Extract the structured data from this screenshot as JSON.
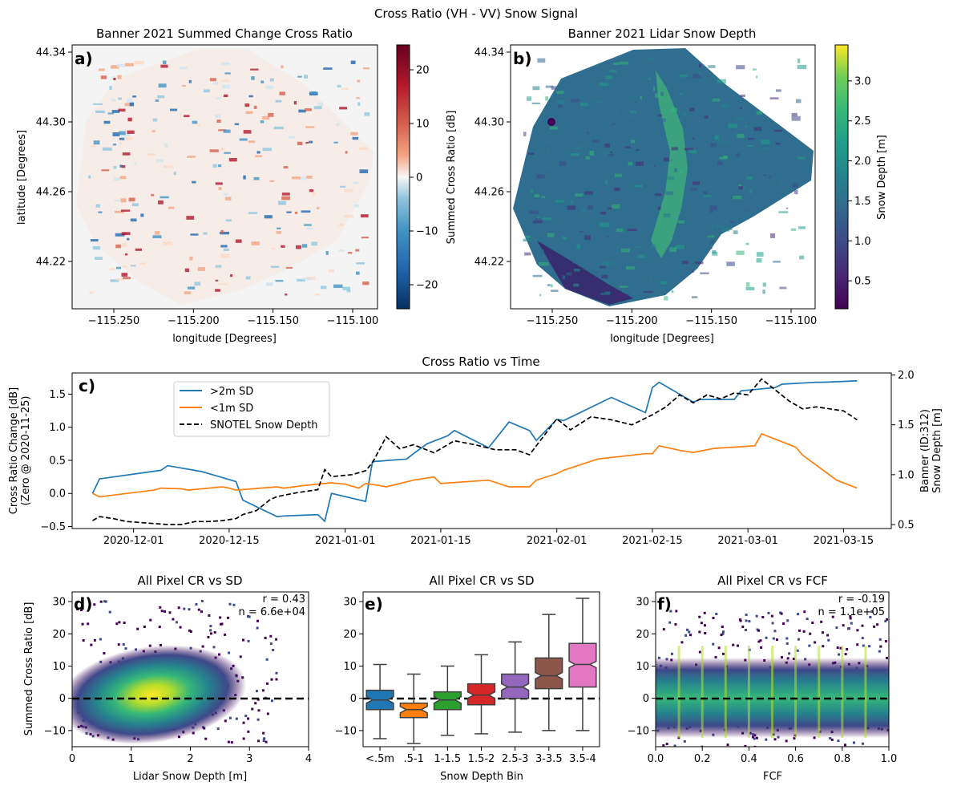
{
  "figure_title": "Cross Ratio (VH - VV) Snow Signal",
  "colors": {
    "series_gt2m": "#1f77b4",
    "series_lt1m": "#ff7f0e",
    "snotel": "#000000",
    "box_fills": [
      "#1f77b4",
      "#ff7f0e",
      "#2ca02c",
      "#d62728",
      "#9467bd",
      "#8c564b",
      "#e377c2"
    ]
  },
  "chart_data": [
    {
      "panel": "a)",
      "type": "heatmap",
      "title": "Banner 2021 Summed Change Cross Ratio",
      "xlabel": "longitude [Degrees]",
      "ylabel": "latitude [Degrees]",
      "xticks": [
        "−115.250",
        "−115.200",
        "−115.150",
        "−115.100"
      ],
      "yticks": [
        "44.34",
        "44.30",
        "44.26",
        "44.22"
      ],
      "colorbar": {
        "label": "Summed Cross Ratio [dB]",
        "ticks": [
          "20",
          "10",
          "0",
          "−10",
          "−20"
        ],
        "range": [
          -25,
          25
        ],
        "colormap": "RdBu_r"
      }
    },
    {
      "panel": "b)",
      "type": "heatmap",
      "title": "Banner 2021 Lidar Snow Depth",
      "xlabel": "longitude [Degrees]",
      "xticks": [
        "−115.250",
        "−115.200",
        "−115.150",
        "−115.100"
      ],
      "yticks": [
        "44.34",
        "44.30",
        "44.26",
        "44.22"
      ],
      "colorbar": {
        "label": "Snow Depth [m]",
        "ticks": [
          "3.0",
          "2.5",
          "2.0",
          "1.5",
          "1.0",
          "0.5"
        ],
        "range": [
          0.15,
          3.45
        ],
        "colormap": "viridis"
      }
    },
    {
      "panel": "c)",
      "type": "line",
      "title": "Cross Ratio vs Time",
      "ylabel_lines": [
        "Cross Ratio Change [dB]",
        "(Zero @ 2020-11-25)"
      ],
      "y2label_lines": [
        "Banner (ID:312)",
        "Snow Depth [m]"
      ],
      "xticks": [
        "2020-12-01",
        "2020-12-15",
        "2021-01-01",
        "2021-01-15",
        "2021-02-01",
        "2021-02-15",
        "2021-03-01",
        "2021-03-15"
      ],
      "yticks": [
        "1.5",
        "1.0",
        "0.5",
        "0.0",
        "−0.5"
      ],
      "y2ticks": [
        "2.0",
        "1.5",
        "1.0",
        "0.5"
      ],
      "ylim": [
        -0.53,
        1.82
      ],
      "y2lim": [
        0.46,
        2.02
      ],
      "xlim": [
        "2020-11-22",
        "2021-03-22"
      ],
      "legend": [
        "&gt;2m SD",
        "&lt;1m SD",
        "SNOTEL Snow Depth"
      ],
      "series": [
        {
          "name": ">2m SD",
          "x": [
            "2020-11-25",
            "2020-11-26",
            "2020-12-05",
            "2020-12-06",
            "2020-12-11",
            "2020-12-16",
            "2020-12-17",
            "2020-12-22",
            "2020-12-23",
            "2020-12-28",
            "2020-12-29",
            "2020-12-30",
            "2021-01-04",
            "2021-01-05",
            "2021-01-10",
            "2021-01-11",
            "2021-01-13",
            "2021-01-16",
            "2021-01-17",
            "2021-01-22",
            "2021-01-25",
            "2021-01-28",
            "2021-01-29",
            "2021-02-01",
            "2021-02-02",
            "2021-02-03",
            "2021-02-09",
            "2021-02-14",
            "2021-02-15",
            "2021-02-16",
            "2021-02-21",
            "2021-02-22",
            "2021-02-27",
            "2021-02-28",
            "2021-03-05",
            "2021-03-06",
            "2021-03-11",
            "2021-03-12",
            "2021-03-17"
          ],
          "values": [
            0.0,
            0.22,
            0.35,
            0.42,
            0.33,
            0.18,
            -0.1,
            -0.35,
            -0.34,
            -0.32,
            -0.42,
            0.0,
            -0.12,
            0.48,
            0.52,
            0.6,
            0.75,
            0.87,
            0.95,
            0.69,
            1.08,
            0.95,
            0.8,
            1.12,
            1.1,
            1.15,
            1.45,
            1.22,
            1.6,
            1.68,
            1.38,
            1.42,
            1.42,
            1.55,
            1.6,
            1.65,
            1.68,
            1.68,
            1.7
          ]
        },
        {
          "name": "<1m SD",
          "x": [
            "2020-11-25",
            "2020-11-26",
            "2020-12-04",
            "2020-12-05",
            "2020-12-08",
            "2020-12-09",
            "2020-12-14",
            "2020-12-15",
            "2020-12-16",
            "2020-12-22",
            "2020-12-23",
            "2020-12-26",
            "2020-12-30",
            "2021-01-01",
            "2021-01-03",
            "2021-01-04",
            "2021-01-06",
            "2021-01-07",
            "2021-01-11",
            "2021-01-14",
            "2021-01-15",
            "2021-01-22",
            "2021-01-25",
            "2021-01-28",
            "2021-01-29",
            "2021-02-01",
            "2021-02-02",
            "2021-02-07",
            "2021-02-14",
            "2021-02-15",
            "2021-02-16",
            "2021-02-19",
            "2021-02-21",
            "2021-02-24",
            "2021-03-02",
            "2021-03-03",
            "2021-03-08",
            "2021-03-09",
            "2021-03-14",
            "2021-03-17"
          ],
          "values": [
            0.0,
            -0.05,
            0.05,
            0.08,
            0.07,
            0.05,
            0.1,
            0.08,
            0.05,
            0.1,
            0.08,
            0.12,
            0.16,
            0.14,
            0.08,
            0.15,
            0.12,
            0.1,
            0.2,
            0.25,
            0.15,
            0.2,
            0.1,
            0.1,
            0.2,
            0.3,
            0.35,
            0.52,
            0.6,
            0.6,
            0.72,
            0.65,
            0.62,
            0.68,
            0.72,
            0.9,
            0.7,
            0.58,
            0.2,
            0.08
          ]
        },
        {
          "name": "SNOTEL Snow Depth",
          "axis": "right",
          "x": [
            "2020-11-25",
            "2020-11-26",
            "2020-11-28",
            "2020-11-30",
            "2020-12-02",
            "2020-12-04",
            "2020-12-06",
            "2020-12-08",
            "2020-12-10",
            "2020-12-12",
            "2020-12-14",
            "2020-12-16",
            "2020-12-17",
            "2020-12-19",
            "2020-12-21",
            "2020-12-22",
            "2020-12-25",
            "2020-12-28",
            "2020-12-29",
            "2020-12-30",
            "2021-01-02",
            "2021-01-04",
            "2021-01-05",
            "2021-01-06",
            "2021-01-07",
            "2021-01-09",
            "2021-01-11",
            "2021-01-14",
            "2021-01-17",
            "2021-01-20",
            "2021-01-23",
            "2021-01-26",
            "2021-01-28",
            "2021-02-01",
            "2021-02-03",
            "2021-02-06",
            "2021-02-09",
            "2021-02-12",
            "2021-02-15",
            "2021-02-17",
            "2021-02-19",
            "2021-02-21",
            "2021-02-23",
            "2021-02-25",
            "2021-02-27",
            "2021-03-01",
            "2021-03-03",
            "2021-03-05",
            "2021-03-07",
            "2021-03-09",
            "2021-03-11",
            "2021-03-13",
            "2021-03-15",
            "2021-03-17"
          ],
          "values": [
            0.54,
            0.58,
            0.56,
            0.53,
            0.52,
            0.51,
            0.5,
            0.5,
            0.53,
            0.53,
            0.54,
            0.56,
            0.6,
            0.64,
            0.75,
            0.78,
            0.82,
            0.85,
            1.05,
            0.98,
            1.0,
            1.04,
            1.12,
            1.25,
            1.38,
            1.26,
            1.3,
            1.22,
            1.34,
            1.3,
            1.25,
            1.25,
            1.2,
            1.56,
            1.45,
            1.58,
            1.55,
            1.5,
            1.6,
            1.68,
            1.8,
            1.72,
            1.8,
            1.76,
            1.82,
            1.8,
            1.96,
            1.85,
            1.74,
            1.66,
            1.68,
            1.66,
            1.64,
            1.55
          ]
        }
      ]
    },
    {
      "panel": "d)",
      "type": "heatmap",
      "title": "All Pixel CR vs SD",
      "xlabel": "Lidar Snow Depth [m]",
      "ylabel": "Summed Cross Ratio [dB]",
      "xticks": [
        "0",
        "1",
        "2",
        "3",
        "4"
      ],
      "yticks": [
        "30",
        "20",
        "10",
        "0",
        "−10"
      ],
      "xlim": [
        0,
        4
      ],
      "ylim": [
        -15,
        33
      ],
      "stats": [
        "r = 0.43",
        "n = 6.6e+04"
      ]
    },
    {
      "panel": "e)",
      "type": "box",
      "title": "All Pixel CR vs SD",
      "xlabel": "Snow Depth Bin",
      "categories": [
        "<.5m",
        ".5-1",
        "1-1.5",
        "1.5-2",
        "2.5-3",
        "3-3.5",
        "3.5-4"
      ],
      "yticks": [
        "30",
        "20",
        "10",
        "0",
        "−10"
      ],
      "ylim": [
        -15,
        33
      ],
      "boxes": [
        {
          "whisker_low": -12.5,
          "q1": -3.5,
          "median": -0.5,
          "q3": 2.5,
          "whisker_high": 10.5
        },
        {
          "whisker_low": -14,
          "q1": -6,
          "median": -3.5,
          "q3": -1.5,
          "whisker_high": 7.5
        },
        {
          "whisker_low": -11.5,
          "q1": -3.5,
          "median": -0.5,
          "q3": 2,
          "whisker_high": 10
        },
        {
          "whisker_low": -11,
          "q1": -2,
          "median": 1,
          "q3": 4.5,
          "whisker_high": 13.5
        },
        {
          "whisker_low": -10.5,
          "q1": 0,
          "median": 3.5,
          "q3": 7.5,
          "whisker_high": 17.5
        },
        {
          "whisker_low": -10,
          "q1": 3,
          "median": 7,
          "q3": 12.5,
          "whisker_high": 26
        },
        {
          "whisker_low": -10,
          "q1": 3.5,
          "median": 10.5,
          "q3": 17,
          "whisker_high": 31
        }
      ]
    },
    {
      "panel": "f)",
      "type": "heatmap",
      "title": "All Pixel CR vs FCF",
      "xlabel": "FCF",
      "xticks": [
        "0.0",
        "0.2",
        "0.4",
        "0.6",
        "0.8",
        "1.0"
      ],
      "yticks": [
        "30",
        "20",
        "10",
        "0",
        "−10"
      ],
      "xlim": [
        0,
        1
      ],
      "ylim": [
        -15,
        33
      ],
      "stats": [
        "r = -0.19",
        "n = 1.1e+05"
      ]
    }
  ]
}
